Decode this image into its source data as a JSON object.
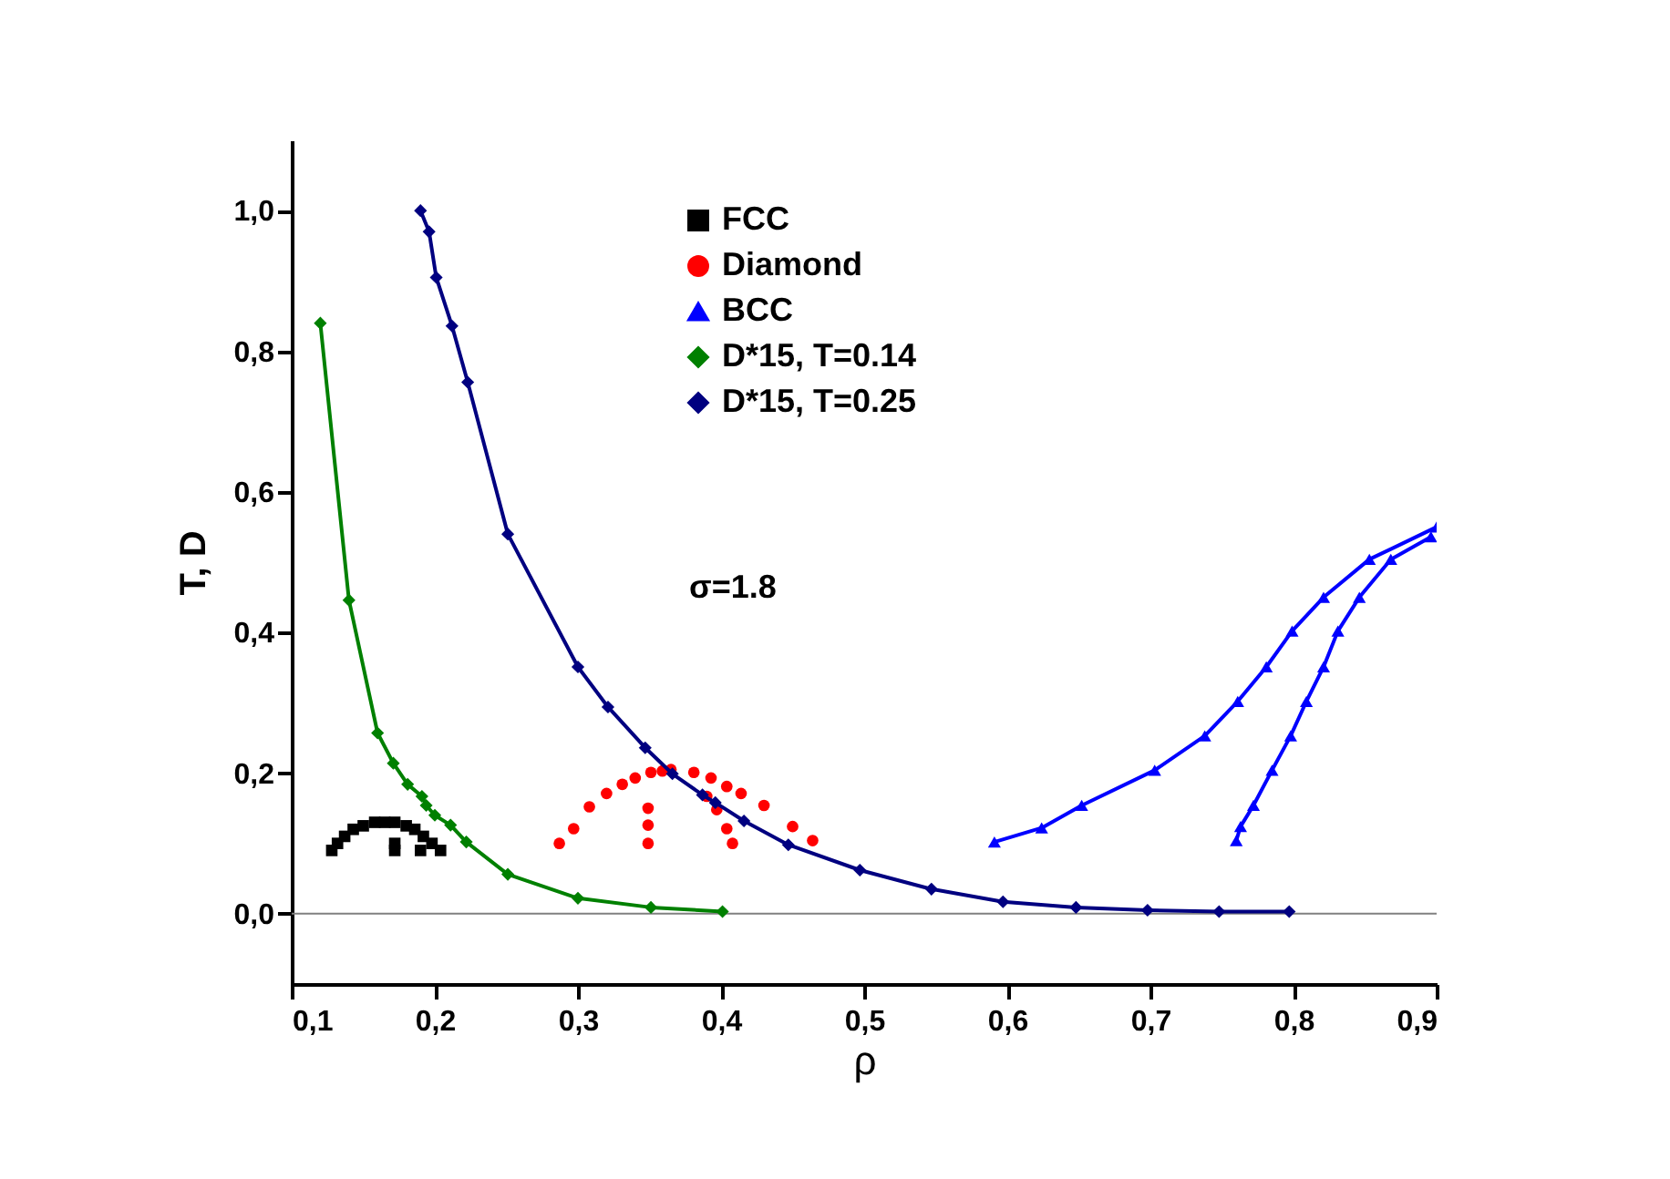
{
  "chart_data": {
    "type": "line",
    "xlabel": "ρ",
    "ylabel": "T, D",
    "xlim": [
      0.1,
      0.9
    ],
    "ylim": [
      -0.1,
      1.1
    ],
    "xticks": [
      {
        "value": 0.1,
        "label": "0,1"
      },
      {
        "value": 0.2,
        "label": "0,2"
      },
      {
        "value": 0.3,
        "label": "0,3"
      },
      {
        "value": 0.4,
        "label": "0,4"
      },
      {
        "value": 0.5,
        "label": "0,5"
      },
      {
        "value": 0.6,
        "label": "0,6"
      },
      {
        "value": 0.7,
        "label": "0,7"
      },
      {
        "value": 0.8,
        "label": "0,8"
      },
      {
        "value": 0.9,
        "label": "0,9"
      }
    ],
    "yticks": [
      {
        "value": 0,
        "label": "0,0"
      },
      {
        "value": 0.2,
        "label": "0,2"
      },
      {
        "value": 0.4,
        "label": "0,4"
      },
      {
        "value": 0.6,
        "label": "0,6"
      },
      {
        "value": 0.8,
        "label": "0,8"
      },
      {
        "value": 1,
        "label": "1,0"
      }
    ],
    "legend": "top",
    "annotations": [
      "σ=1.8"
    ],
    "ref_lines": [
      {
        "axis": "y",
        "value": 0,
        "color": "#808080"
      }
    ],
    "series": [
      {
        "name": "FCC",
        "type": "scatter",
        "marker": "square",
        "color": "#000000",
        "x": [
          0.128,
          0.132,
          0.137,
          0.143,
          0.15,
          0.158,
          0.165,
          0.172,
          0.18,
          0.186,
          0.192,
          0.198,
          0.204,
          0.172,
          0.172,
          0.19
        ],
        "values": [
          0.09,
          0.1,
          0.11,
          0.12,
          0.125,
          0.13,
          0.13,
          0.13,
          0.125,
          0.12,
          0.11,
          0.1,
          0.09,
          0.09,
          0.1,
          0.09
        ]
      },
      {
        "name": "Diamond",
        "type": "scatter",
        "marker": "circle",
        "color": "#ff0000",
        "x": [
          0.287,
          0.297,
          0.308,
          0.32,
          0.331,
          0.34,
          0.351,
          0.359,
          0.365,
          0.381,
          0.393,
          0.404,
          0.414,
          0.43,
          0.45,
          0.464,
          0.349,
          0.349,
          0.349,
          0.39,
          0.397,
          0.404,
          0.408
        ],
        "values": [
          0.1,
          0.121,
          0.152,
          0.171,
          0.184,
          0.193,
          0.201,
          0.203,
          0.205,
          0.201,
          0.193,
          0.181,
          0.171,
          0.154,
          0.124,
          0.104,
          0.15,
          0.126,
          0.1,
          0.167,
          0.148,
          0.121,
          0.1
        ]
      },
      {
        "name": "BCC",
        "marker": "triangle",
        "color": "#0000ff",
        "x": [
          0.591,
          0.624,
          0.652,
          0.703,
          0.738,
          0.761,
          0.781,
          0.799,
          0.821,
          0.853,
          0.9
        ],
        "values": [
          0.102,
          0.122,
          0.154,
          0.204,
          0.253,
          0.302,
          0.351,
          0.402,
          0.45,
          0.504,
          0.55
        ]
      },
      {
        "marker": "triangle",
        "color": "#0000ff",
        "x": [
          0.76,
          0.763,
          0.772,
          0.785,
          0.798,
          0.809,
          0.821,
          0.831,
          0.846,
          0.868,
          0.896
        ],
        "values": [
          0.104,
          0.124,
          0.154,
          0.204,
          0.253,
          0.302,
          0.351,
          0.402,
          0.45,
          0.504,
          0.536
        ]
      },
      {
        "name": "D*15, T=0.14",
        "marker": "diamond",
        "color": "#008000",
        "x": [
          0.12,
          0.14,
          0.16,
          0.171,
          0.181,
          0.191,
          0.194,
          0.2,
          0.211,
          0.222,
          0.251,
          0.3,
          0.351,
          0.401
        ],
        "values": [
          0.84,
          0.446,
          0.257,
          0.214,
          0.184,
          0.167,
          0.154,
          0.14,
          0.126,
          0.102,
          0.056,
          0.022,
          0.009,
          0.003
        ]
      },
      {
        "name": "D*15, T=0.25",
        "marker": "diamond",
        "color": "#000080",
        "x": [
          0.19,
          0.196,
          0.201,
          0.212,
          0.223,
          0.251,
          0.3,
          0.321,
          0.347,
          0.366,
          0.387,
          0.396,
          0.416,
          0.447,
          0.497,
          0.547,
          0.597,
          0.648,
          0.698,
          0.748,
          0.797
        ],
        "values": [
          1.0,
          0.97,
          0.905,
          0.836,
          0.756,
          0.54,
          0.351,
          0.294,
          0.236,
          0.199,
          0.169,
          0.158,
          0.132,
          0.098,
          0.062,
          0.035,
          0.017,
          0.009,
          0.005,
          0.003,
          0.003
        ]
      }
    ]
  }
}
